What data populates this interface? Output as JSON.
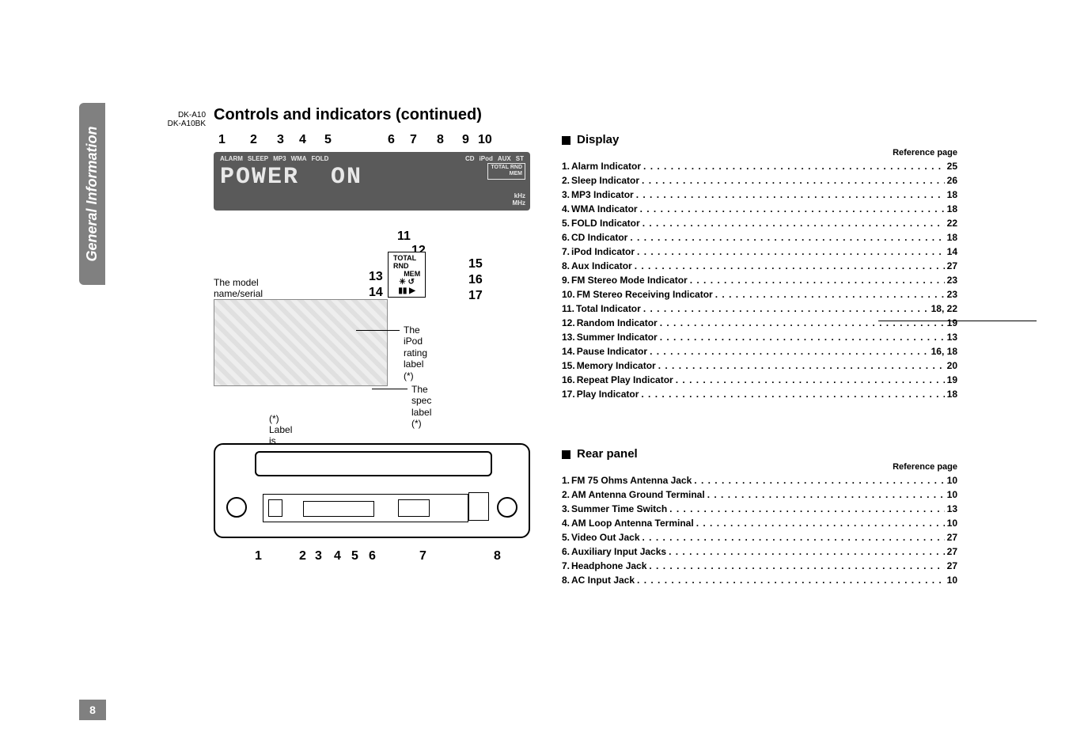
{
  "model": {
    "line1": "DK-A10",
    "line2": "DK-A10BK"
  },
  "title": "Controls and indicators (continued)",
  "sidebar_label": "General Information",
  "page_number": "8",
  "display_diagram": {
    "top_numbers": [
      "1",
      "2",
      "3",
      "4",
      "5",
      "6",
      "7",
      "8",
      "9",
      "10"
    ],
    "top_number_x": [
      6,
      46,
      80,
      108,
      140,
      220,
      248,
      282,
      314,
      334
    ],
    "lcd": {
      "labels": [
        "ALARM",
        "SLEEP",
        "MP3",
        "WMA",
        "FOLD",
        "CD",
        "iPod",
        "AUX",
        "ST"
      ],
      "right_box": [
        "TOTAL RND",
        "MEM"
      ],
      "sevenseg": "POWER  ON",
      "freq": [
        "kHz",
        "MHz"
      ]
    }
  },
  "sub_diagram": {
    "num_11": "11",
    "num_12": "12",
    "line_total": "TOTAL",
    "line_rnd": "RND",
    "line_mem": "MEM",
    "num_13": "13",
    "num_14": "14",
    "num_15": "15",
    "num_16": "16",
    "num_17": "17",
    "model_serial_label": "The model name/serial no.label (*)",
    "ipod_label_l1": "The iPod",
    "ipod_label_l2": "rating label (*)",
    "spec_label": "The spec label (*)",
    "bottom_caption": "(*) Label is located at the bottom of the unit."
  },
  "rear_diagram": {
    "numbers": [
      "1",
      "2",
      "3",
      "4",
      "5",
      "6",
      "7",
      "8"
    ],
    "number_x": [
      52,
      108,
      128,
      152,
      174,
      196,
      260,
      354
    ]
  },
  "display_section": {
    "heading": "Display",
    "reference_label": "Reference page",
    "items": [
      {
        "idx": "1.",
        "label": "Alarm Indicator",
        "page": "25"
      },
      {
        "idx": "2.",
        "label": "Sleep Indicator",
        "page": "26"
      },
      {
        "idx": "3.",
        "label": "MP3 Indicator",
        "page": "18"
      },
      {
        "idx": "4.",
        "label": "WMA Indicator",
        "page": "18"
      },
      {
        "idx": "5.",
        "label": "FOLD Indicator",
        "page": "22"
      },
      {
        "idx": "6.",
        "label": "CD Indicator",
        "page": "18"
      },
      {
        "idx": "7.",
        "label": "iPod Indicator",
        "page": "14"
      },
      {
        "idx": "8.",
        "label": "Aux Indicator",
        "page": "27"
      },
      {
        "idx": "9.",
        "label": "FM Stereo Mode Indicator",
        "page": "23"
      },
      {
        "idx": "10.",
        "label": "FM Stereo Receiving Indicator",
        "page": "23"
      },
      {
        "idx": "11.",
        "label": "Total Indicator",
        "page": "18, 22"
      },
      {
        "idx": "12.",
        "label": "Random Indicator",
        "page": "19"
      },
      {
        "idx": "13.",
        "label": "Summer Indicator",
        "page": "13"
      },
      {
        "idx": "14.",
        "label": "Pause Indicator",
        "page": "16, 18"
      },
      {
        "idx": "15.",
        "label": "Memory Indicator",
        "page": "20"
      },
      {
        "idx": "16.",
        "label": "Repeat Play Indicator",
        "page": "19"
      },
      {
        "idx": "17.",
        "label": "Play Indicator",
        "page": "18"
      }
    ]
  },
  "rear_section": {
    "heading": "Rear panel",
    "reference_label": "Reference page",
    "items": [
      {
        "idx": "1.",
        "label": "FM 75 Ohms Antenna Jack",
        "page": "10"
      },
      {
        "idx": "2.",
        "label": "AM Antenna Ground Terminal",
        "page": "10"
      },
      {
        "idx": "3.",
        "label": "Summer Time Switch",
        "page": "13"
      },
      {
        "idx": "4.",
        "label": "AM Loop Antenna Terminal",
        "page": "10"
      },
      {
        "idx": "5.",
        "label": "Video Out Jack",
        "page": "27"
      },
      {
        "idx": "6.",
        "label": "Auxiliary Input Jacks",
        "page": "27"
      },
      {
        "idx": "7.",
        "label": "Headphone Jack",
        "page": "27"
      },
      {
        "idx": "8.",
        "label": "AC Input Jack",
        "page": "10"
      }
    ]
  },
  "colors": {
    "sidebar_bg": "#808080",
    "lcd_bg": "#5a5a5a",
    "text": "#000000",
    "lcd_text": "#e8e8e8"
  }
}
